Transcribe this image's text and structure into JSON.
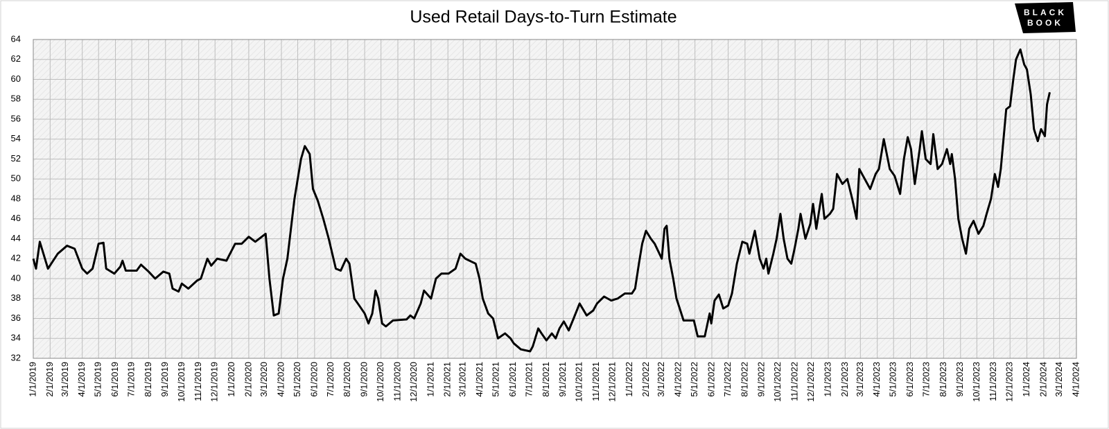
{
  "logo": [
    "BLACK",
    "BOOK"
  ],
  "chart_data": {
    "type": "line",
    "title": "Used Retail Days-to-Turn Estimate",
    "color": "#000000",
    "grid": true,
    "xlim": [
      "1/1/2019",
      "4/1/2024"
    ],
    "ylim": [
      32,
      64
    ],
    "yticks": [
      32,
      34,
      36,
      38,
      40,
      42,
      44,
      46,
      48,
      50,
      52,
      54,
      56,
      58,
      60,
      62,
      64
    ],
    "xticks": [
      "1/1/2019",
      "2/1/2019",
      "3/1/2019",
      "4/1/2019",
      "5/1/2019",
      "6/1/2019",
      "7/1/2019",
      "8/1/2019",
      "9/1/2019",
      "10/1/2019",
      "11/1/2019",
      "12/1/2019",
      "1/1/2020",
      "2/1/2020",
      "3/1/2020",
      "4/1/2020",
      "5/1/2020",
      "6/1/2020",
      "7/1/2020",
      "8/1/2020",
      "9/1/2020",
      "10/1/2020",
      "11/1/2020",
      "12/1/2020",
      "1/1/2021",
      "2/1/2021",
      "3/1/2021",
      "4/1/2021",
      "5/1/2021",
      "6/1/2021",
      "7/1/2021",
      "8/1/2021",
      "9/1/2021",
      "10/1/2021",
      "11/1/2021",
      "12/1/2021",
      "1/1/2022",
      "2/1/2022",
      "3/1/2022",
      "4/1/2022",
      "5/1/2022",
      "6/1/2022",
      "7/1/2022",
      "8/1/2022",
      "9/1/2022",
      "10/1/2022",
      "11/1/2022",
      "12/1/2022",
      "1/1/2023",
      "2/1/2023",
      "3/1/2023",
      "4/1/2023",
      "5/1/2023",
      "6/1/2023",
      "7/1/2023",
      "8/1/2023",
      "9/1/2023",
      "10/1/2023",
      "11/1/2023",
      "12/1/2023",
      "1/1/2024",
      "2/1/2024",
      "3/1/2024",
      "4/1/2024"
    ],
    "x": [
      "1/1/2019",
      "1/6/2019",
      "1/13/2019",
      "1/28/2019",
      "2/15/2019",
      "3/4/2019",
      "3/18/2019",
      "4/1/2019",
      "4/10/2019",
      "4/20/2019",
      "5/1/2019",
      "5/10/2019",
      "5/15/2019",
      "5/30/2019",
      "6/10/2019",
      "6/14/2019",
      "6/20/2019",
      "7/10/2019",
      "7/18/2019",
      "8/1/2019",
      "8/13/2019",
      "8/28/2019",
      "9/8/2019",
      "9/14/2019",
      "9/25/2019",
      "10/1/2019",
      "10/13/2019",
      "10/29/2019",
      "11/5/2019",
      "11/17/2019",
      "11/24/2019",
      "12/5/2019",
      "12/22/2019",
      "1/7/2020",
      "1/19/2020",
      "2/1/2020",
      "2/13/2020",
      "3/3/2020",
      "3/10/2020",
      "3/18/2020",
      "3/27/2020",
      "4/4/2020",
      "4/12/2020",
      "4/25/2020",
      "5/7/2020",
      "5/14/2020",
      "5/23/2020",
      "5/29/2020",
      "6/7/2020",
      "6/17/2020",
      "6/27/2020",
      "7/10/2020",
      "7/19/2020",
      "7/29/2020",
      "8/4/2020",
      "8/13/2020",
      "8/22/2020",
      "9/1/2020",
      "9/8/2020",
      "9/15/2020",
      "9/21/2020",
      "9/26/2020",
      "10/3/2020",
      "10/10/2020",
      "10/23/2020",
      "11/17/2020",
      "11/24/2020",
      "12/1/2020",
      "12/13/2020",
      "12/19/2020",
      "1/1/2021",
      "1/10/2021",
      "1/20/2021",
      "2/2/2021",
      "2/15/2021",
      "2/24/2021",
      "3/5/2021",
      "3/24/2021",
      "3/31/2021",
      "4/6/2021",
      "4/16/2021",
      "4/25/2021",
      "5/4/2021",
      "5/17/2021",
      "5/27/2021",
      "6/2/2021",
      "6/15/2021",
      "7/2/2021",
      "7/7/2021",
      "7/17/2021",
      "7/23/2021",
      "8/1/2021",
      "8/11/2021",
      "8/18/2021",
      "8/25/2021",
      "9/2/2021",
      "9/11/2021",
      "9/20/2021",
      "10/1/2021",
      "10/14/2021",
      "10/26/2021",
      "11/2/2021",
      "11/15/2021",
      "11/28/2021",
      "12/10/2021",
      "12/23/2021",
      "1/5/2022",
      "1/11/2022",
      "1/18/2022",
      "1/24/2022",
      "1/31/2022",
      "2/9/2022",
      "2/16/2022",
      "3/1/2022",
      "3/6/2022",
      "3/10/2022",
      "3/15/2022",
      "3/22/2022",
      "3/28/2022",
      "4/3/2022",
      "4/10/2022",
      "4/29/2022",
      "5/6/2022",
      "5/19/2022",
      "5/28/2022",
      "5/31/2022",
      "6/6/2022",
      "6/14/2022",
      "6/22/2022",
      "7/1/2022",
      "7/8/2022",
      "7/17/2022",
      "7/27/2022",
      "8/5/2022",
      "8/9/2022",
      "8/19/2022",
      "8/28/2022",
      "9/4/2022",
      "9/9/2022",
      "9/13/2022",
      "9/22/2022",
      "9/28/2022",
      "10/5/2022",
      "10/11/2022",
      "10/18/2022",
      "10/25/2022",
      "10/31/2022",
      "11/7/2022",
      "11/11/2022",
      "11/20/2022",
      "11/29/2022",
      "12/4/2022",
      "12/10/2022",
      "12/20/2022",
      "12/25/2022",
      "1/4/2023",
      "1/10/2023",
      "1/17/2023",
      "1/27/2023",
      "2/5/2023",
      "2/14/2023",
      "2/22/2023",
      "2/27/2023",
      "3/9/2023",
      "3/19/2023",
      "3/29/2023",
      "4/4/2023",
      "4/13/2023",
      "4/24/2023",
      "5/3/2023",
      "5/13/2023",
      "5/20/2023",
      "5/27/2023",
      "6/2/2023",
      "6/9/2023",
      "6/18/2023",
      "6/22/2023",
      "6/29/2023",
      "7/8/2023",
      "7/13/2023",
      "7/21/2023",
      "7/29/2023",
      "8/7/2023",
      "8/13/2023",
      "8/16/2023",
      "8/22/2023",
      "8/28/2023",
      "9/4/2023",
      "9/11/2023",
      "9/17/2023",
      "9/25/2023",
      "10/4/2023",
      "10/13/2023",
      "10/19/2023",
      "10/27/2023",
      "11/3/2023",
      "11/9/2023",
      "11/14/2023",
      "11/19/2023",
      "11/24/2023",
      "12/1/2023",
      "12/7/2023",
      "12/12/2023",
      "12/20/2023",
      "12/27/2023",
      "1/1/2024",
      "1/8/2024",
      "1/14/2024",
      "1/21/2024",
      "1/27/2024",
      "2/3/2024",
      "2/7/2024",
      "2/12/2024"
    ],
    "values": [
      42,
      41,
      43.7,
      41,
      42.5,
      43.3,
      43,
      41,
      40.5,
      41,
      43.5,
      43.6,
      41,
      40.5,
      41.2,
      41.8,
      40.8,
      40.8,
      41.4,
      40.7,
      40,
      40.7,
      40.5,
      39,
      38.7,
      39.5,
      39,
      39.8,
      40,
      42,
      41.3,
      42,
      41.8,
      43.5,
      43.5,
      44.2,
      43.7,
      44.5,
      40,
      36.3,
      36.5,
      40,
      42,
      48,
      52,
      53.3,
      52.5,
      49,
      47.8,
      46,
      44,
      41,
      40.8,
      42,
      41.5,
      38,
      37.3,
      36.5,
      35.5,
      36.5,
      38.8,
      38,
      35.5,
      35.2,
      35.8,
      35.9,
      36.3,
      36,
      37.5,
      38.8,
      38,
      40,
      40.5,
      40.5,
      41,
      42.5,
      42,
      41.5,
      40,
      38,
      36.5,
      36,
      34,
      34.5,
      34,
      33.5,
      32.9,
      32.7,
      33.2,
      35,
      34.5,
      33.8,
      34.5,
      34,
      35,
      35.7,
      34.8,
      36,
      37.5,
      36.3,
      36.8,
      37.5,
      38.2,
      37.8,
      38,
      38.5,
      38.5,
      39,
      41.5,
      43.5,
      44.8,
      44,
      43.5,
      42,
      45,
      45.3,
      42,
      40,
      38,
      37,
      35.8,
      35.8,
      34.2,
      34.2,
      36.5,
      35.5,
      37.8,
      38.4,
      37,
      37.3,
      38.5,
      41.5,
      43.7,
      43.5,
      42.5,
      44.8,
      42,
      41,
      42,
      40.5,
      42.5,
      44,
      46.5,
      44,
      42,
      41.5,
      43,
      45,
      46.5,
      44,
      45.5,
      47.5,
      45,
      48.5,
      46,
      46.5,
      47,
      50.5,
      49.5,
      50,
      48,
      46,
      51,
      50,
      49,
      50.5,
      51,
      54,
      51,
      50.3,
      48.5,
      52,
      54.2,
      53,
      49.5,
      53,
      54.8,
      52,
      51.5,
      54.5,
      51,
      51.5,
      53,
      51.5,
      52.5,
      50,
      46,
      44,
      42.5,
      45,
      45.8,
      44.5,
      45.3,
      46.5,
      48,
      50.5,
      49.2,
      51,
      54,
      57,
      57.3,
      60,
      62,
      63,
      61.5,
      61,
      58.5,
      55,
      53.8,
      55,
      54.3,
      57.5,
      58.7
    ]
  }
}
